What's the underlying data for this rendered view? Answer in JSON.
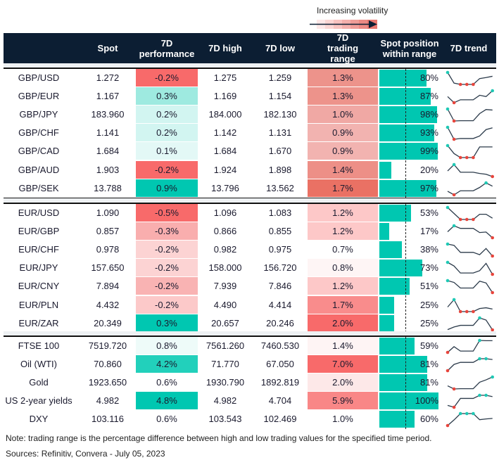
{
  "legend": {
    "label": "Increasing volatility"
  },
  "headers": [
    "",
    "Spot",
    "7D performance",
    "7D high",
    "7D low",
    "7D trading range",
    "Spot position within range",
    "7D trend"
  ],
  "colors": {
    "header_bg": "#0c1e33",
    "bar": "#00c7b1",
    "spark_line": "#2b3a4a",
    "spark_max": "#1fc9b5",
    "spark_min": "#e8453c"
  },
  "groups": [
    {
      "rows": [
        {
          "name": "GBP/USD",
          "spot": "1.272",
          "perf": "-0.2%",
          "perf_color": "#f86a6a",
          "high": "1.275",
          "low": "1.259",
          "range": "1.3%",
          "range_color": "#ed938b",
          "position": 80,
          "position_label": "80%",
          "trend": [
            72,
            30,
            25,
            25,
            25,
            48,
            52,
            57
          ]
        },
        {
          "name": "GBP/EUR",
          "spot": "1.167",
          "perf": "0.3%",
          "perf_color": "#9eeae0",
          "high": "1.169",
          "low": "1.154",
          "range": "1.3%",
          "range_color": "#ed938b",
          "position": 87,
          "position_label": "87%",
          "trend": [
            25,
            2,
            13,
            13,
            13,
            30,
            25,
            47
          ]
        },
        {
          "name": "GBP/JPY",
          "spot": "183.960",
          "perf": "0.2%",
          "perf_color": "#d2f5f1",
          "high": "184.000",
          "low": "182.130",
          "range": "1.0%",
          "range_color": "#f0a8a4",
          "position": 98,
          "position_label": "98%",
          "trend": [
            47,
            0,
            1,
            1,
            1,
            29,
            45,
            43
          ]
        },
        {
          "name": "GBP/CHF",
          "spot": "1.141",
          "perf": "0.2%",
          "perf_color": "#d2f5f1",
          "high": "1.142",
          "low": "1.131",
          "range": "0.9%",
          "range_color": "#f2b3b0",
          "position": 93,
          "position_label": "93%",
          "trend": [
            47,
            0,
            3,
            3,
            3,
            13,
            38,
            45
          ]
        },
        {
          "name": "GBP/CAD",
          "spot": "1.684",
          "perf": "0.1%",
          "perf_color": "#e3f8f6",
          "high": "1.684",
          "low": "1.670",
          "range": "0.9%",
          "range_color": "#f2b3b0",
          "position": 99,
          "position_label": "99%",
          "trend": [
            47,
            17,
            2,
            2,
            2,
            42,
            42,
            42
          ]
        },
        {
          "name": "GBP/AUD",
          "spot": "1.903",
          "perf": "-0.2%",
          "perf_color": "#f86a6a",
          "high": "1.924",
          "low": "1.898",
          "range": "1.4%",
          "range_color": "#ed8f87",
          "position": 20,
          "position_label": "20%",
          "trend": [
            22,
            47,
            17,
            17,
            17,
            12,
            9,
            0
          ]
        },
        {
          "name": "GBP/SEK",
          "spot": "13.788",
          "perf": "0.9%",
          "perf_color": "#00c7b1",
          "high": "13.796",
          "low": "13.562",
          "range": "1.7%",
          "range_color": "#ea7164",
          "position": 97,
          "position_label": "97%",
          "trend": [
            15,
            1,
            17,
            17,
            17,
            30,
            48,
            35
          ]
        }
      ]
    },
    {
      "rows": [
        {
          "name": "EUR/USD",
          "spot": "1.090",
          "perf": "-0.5%",
          "perf_color": "#f86a6a",
          "high": "1.096",
          "low": "1.083",
          "range": "1.2%",
          "range_color": "#fdc8c8",
          "position": 53,
          "position_label": "53%",
          "trend": [
            46,
            23,
            0,
            0,
            0,
            20,
            20,
            5
          ]
        },
        {
          "name": "EUR/GBP",
          "spot": "0.857",
          "perf": "-0.3%",
          "perf_color": "#f9aeae",
          "high": "0.866",
          "low": "0.855",
          "range": "1.2%",
          "range_color": "#fdc8c8",
          "position": 17,
          "position_label": "17%",
          "trend": [
            23,
            46,
            36,
            36,
            36,
            20,
            22,
            0
          ]
        },
        {
          "name": "EUR/CHF",
          "spot": "0.978",
          "perf": "-0.2%",
          "perf_color": "#fcd3d3",
          "high": "0.982",
          "low": "0.975",
          "range": "0.7%",
          "range_color": "#ffffff",
          "position": 38,
          "position_label": "38%",
          "trend": [
            46,
            41,
            14,
            14,
            14,
            5,
            29,
            0
          ]
        },
        {
          "name": "EUR/JPY",
          "spot": "157.650",
          "perf": "-0.2%",
          "perf_color": "#fcd3d3",
          "high": "158.000",
          "low": "156.720",
          "range": "0.8%",
          "range_color": "#fef5f5",
          "position": 73,
          "position_label": "73%",
          "trend": [
            46,
            32,
            5,
            5,
            5,
            14,
            42,
            0
          ]
        },
        {
          "name": "EUR/CNY",
          "spot": "7.894",
          "perf": "-0.2%",
          "perf_color": "#f9b3b3",
          "high": "7.939",
          "low": "7.846",
          "range": "1.2%",
          "range_color": "#fdc8c8",
          "position": 51,
          "position_label": "51%",
          "trend": [
            47,
            40,
            18,
            18,
            18,
            45,
            38,
            0
          ]
        },
        {
          "name": "EUR/PLN",
          "spot": "4.432",
          "perf": "-0.2%",
          "perf_color": "#fcc9c9",
          "high": "4.490",
          "low": "4.414",
          "range": "1.7%",
          "range_color": "#f98c8c",
          "position": 25,
          "position_label": "25%",
          "trend": [
            18,
            47,
            0,
            0,
            0,
            12,
            15,
            10
          ]
        },
        {
          "name": "EUR/ZAR",
          "spot": "20.349",
          "perf": "0.3%",
          "perf_color": "#00c7b1",
          "high": "20.657",
          "low": "20.246",
          "range": "2.0%",
          "range_color": "#f86a6a",
          "position": 25,
          "position_label": "25%",
          "trend": [
            1,
            11,
            17,
            17,
            17,
            45,
            37,
            0
          ]
        }
      ]
    },
    {
      "rows": [
        {
          "name": "FTSE 100",
          "spot": "7519.720",
          "perf": "0.8%",
          "perf_color": "#eefbf9",
          "high": "7561.260",
          "low": "7460.530",
          "range": "1.4%",
          "range_color": "#fef4f4",
          "position": 59,
          "position_label": "59%",
          "trend": [
            0,
            22,
            5,
            5,
            5,
            46,
            45,
            45
          ]
        },
        {
          "name": "Oil (WTI)",
          "spot": "70.860",
          "perf": "4.2%",
          "perf_color": "#22d0bb",
          "high": "71.770",
          "low": "67.050",
          "range": "7.0%",
          "range_color": "#f86a6a",
          "position": 81,
          "position_label": "81%",
          "trend": [
            0,
            24,
            32,
            32,
            32,
            46,
            46,
            43
          ]
        },
        {
          "name": "Gold",
          "spot": "1923.650",
          "perf": "0.6%",
          "perf_color": "#ffffff",
          "high": "1930.790",
          "low": "1892.819",
          "range": "2.0%",
          "range_color": "#fde8e8",
          "position": 81,
          "position_label": "81%",
          "trend": [
            12,
            0,
            1,
            1,
            1,
            26,
            35,
            46
          ]
        },
        {
          "name": "US 2-year yields",
          "spot": "4.982",
          "perf": "4.8%",
          "perf_color": "#00c7b1",
          "high": "4.982",
          "low": "4.704",
          "range": "5.9%",
          "range_color": "#f98787",
          "position": 100,
          "position_label": "100%",
          "trend": [
            7,
            0,
            34,
            34,
            34,
            46,
            46,
            41
          ]
        },
        {
          "name": "DXY",
          "spot": "103.116",
          "perf": "0.6%",
          "perf_color": "#ffffff",
          "high": "103.543",
          "low": "102.469",
          "range": "1.0%",
          "range_color": "#ffffff",
          "position": 60,
          "position_label": "60%",
          "trend": [
            0,
            22,
            47,
            47,
            47,
            23,
            26,
            28
          ]
        }
      ]
    }
  ],
  "footer": {
    "note": "Note: trading range is the percentage difference between high and low trading values for the specified time period.",
    "sources": "Sources: Refinitiv, Convera - July 05, 2023"
  }
}
